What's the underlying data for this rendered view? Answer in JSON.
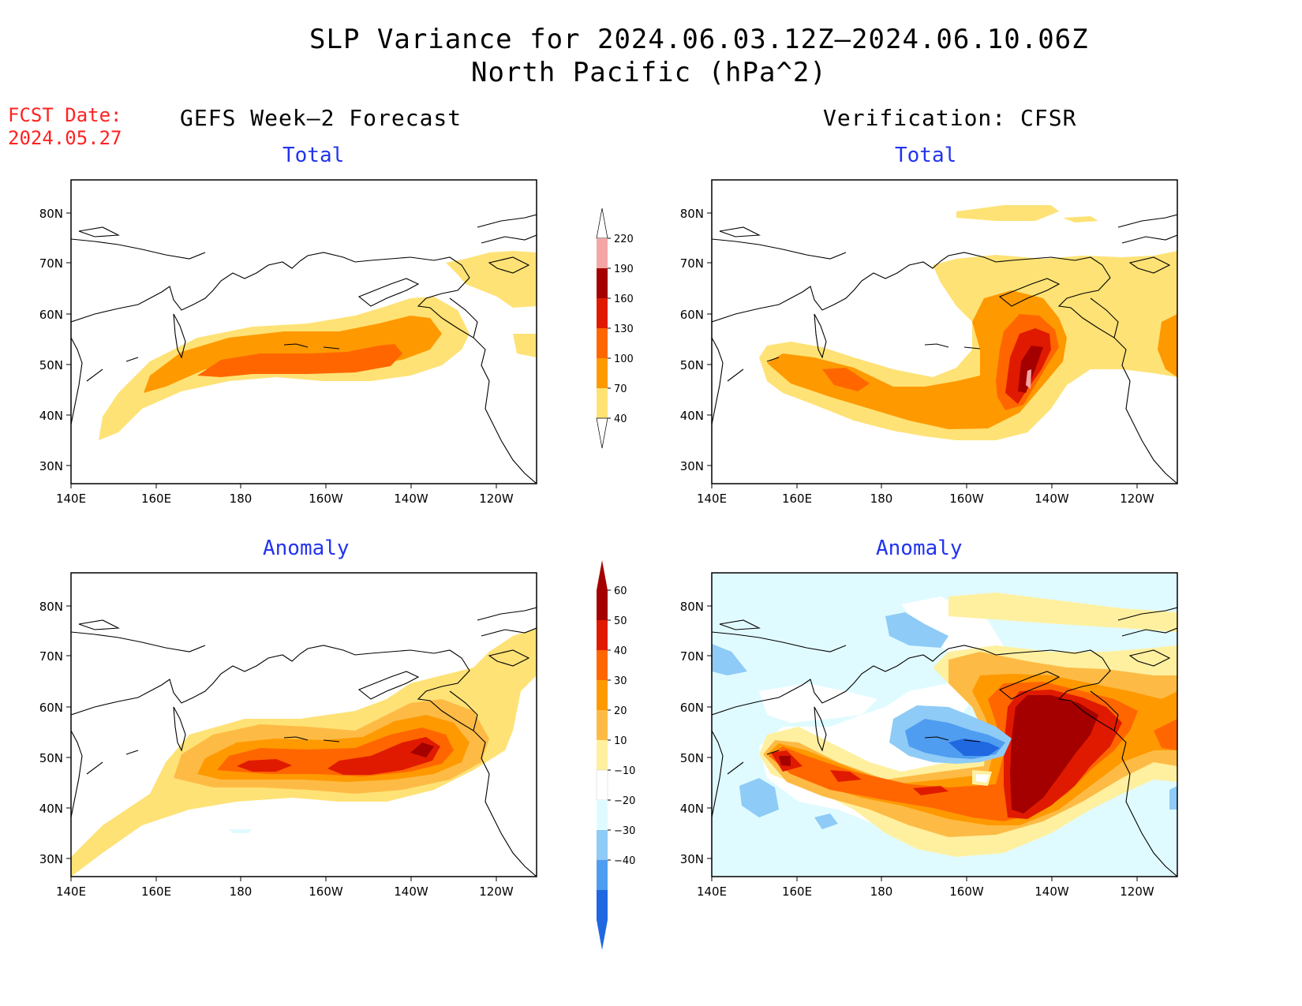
{
  "header": {
    "title": "SLP Variance for 2024.06.03.12Z–2024.06.10.06Z",
    "subtitle": "North Pacific (hPa^2)",
    "fcst_label": "FCST Date:",
    "fcst_date": "2024.05.27",
    "left_column": "GEFS Week–2 Forecast",
    "right_column": "Verification: CFSR"
  },
  "panels": {
    "tl": {
      "label": "Total"
    },
    "tr": {
      "label": "Total"
    },
    "bl": {
      "label": "Anomaly"
    },
    "br": {
      "label": "Anomaly"
    }
  },
  "map_axes": {
    "lat_labels": [
      "80N",
      "70N",
      "60N",
      "50N",
      "40N",
      "30N"
    ],
    "lon_labels": [
      "140E",
      "160E",
      "180",
      "160W",
      "140W",
      "120W"
    ]
  },
  "colorbars": {
    "total": {
      "levels": [
        "220",
        "190",
        "160",
        "130",
        "100",
        "70",
        "40"
      ],
      "colors": [
        "#f4a6a6",
        "#a40000",
        "#e01a00",
        "#ff6600",
        "#ff9900",
        "#fee275"
      ]
    },
    "anomaly": {
      "levels": [
        "60",
        "50",
        "40",
        "30",
        "20",
        "10",
        "−10",
        "−20",
        "−30",
        "−40"
      ],
      "colors": [
        "#a40000",
        "#e01a00",
        "#ff6600",
        "#ff9900",
        "#fdbb45",
        "#fff0a0",
        "#ffffff",
        "#e0fbff",
        "#8ecbf7",
        "#4f9df0",
        "#1f68e0"
      ]
    }
  }
}
